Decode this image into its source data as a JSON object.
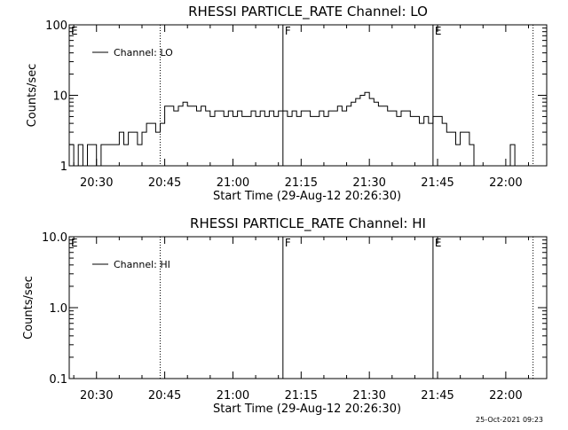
{
  "footer": {
    "timestamp": "25-Oct-2021 09:23"
  },
  "chart_data": [
    {
      "type": "line",
      "title": "RHESSI PARTICLE_RATE Channel: LO",
      "xlabel": "Start Time (29-Aug-12 20:26:30)",
      "ylabel": "Counts/sec",
      "yscale": "log",
      "ylim": [
        1,
        100
      ],
      "xlim": [
        "20:24",
        "22:09"
      ],
      "x_tick_labels": [
        "20:30",
        "20:45",
        "21:00",
        "21:15",
        "21:30",
        "21:45",
        "22:00"
      ],
      "y_tick_labels": [
        "1",
        "10",
        "100"
      ],
      "legend": {
        "position": "top-left",
        "label": "Channel: LO"
      },
      "markers": [
        {
          "label": "E",
          "time": "20:24",
          "style": "none"
        },
        {
          "label": "",
          "time": "20:44",
          "style": "dotted"
        },
        {
          "label": "F",
          "time": "21:11",
          "style": "solid"
        },
        {
          "label": "E",
          "time": "21:44",
          "style": "solid"
        },
        {
          "label": "",
          "time": "22:06",
          "style": "dotted"
        }
      ],
      "series": [
        {
          "name": "Channel: LO",
          "x": [
            "20:24",
            "20:25",
            "20:26",
            "20:27",
            "20:28",
            "20:29",
            "20:30",
            "20:31",
            "20:32",
            "20:33",
            "20:34",
            "20:35",
            "20:36",
            "20:37",
            "20:38",
            "20:39",
            "20:40",
            "20:41",
            "20:42",
            "20:43",
            "20:44",
            "20:45",
            "20:46",
            "20:47",
            "20:48",
            "20:49",
            "20:50",
            "20:51",
            "20:52",
            "20:53",
            "20:54",
            "20:55",
            "20:56",
            "20:57",
            "20:58",
            "20:59",
            "21:00",
            "21:01",
            "21:02",
            "21:03",
            "21:04",
            "21:05",
            "21:06",
            "21:07",
            "21:08",
            "21:09",
            "21:10",
            "21:11",
            "21:12",
            "21:13",
            "21:14",
            "21:15",
            "21:16",
            "21:17",
            "21:18",
            "21:19",
            "21:20",
            "21:21",
            "21:22",
            "21:23",
            "21:24",
            "21:25",
            "21:26",
            "21:27",
            "21:28",
            "21:29",
            "21:30",
            "21:31",
            "21:32",
            "21:33",
            "21:34",
            "21:35",
            "21:36",
            "21:37",
            "21:38",
            "21:39",
            "21:40",
            "21:41",
            "21:42",
            "21:43",
            "21:44",
            "21:45",
            "21:46",
            "21:47",
            "21:48",
            "21:49",
            "21:50",
            "21:51",
            "21:52",
            "21:53",
            "21:54",
            "21:55",
            "21:56",
            "21:57",
            "21:58",
            "21:59",
            "22:00",
            "22:01",
            "22:02"
          ],
          "y": [
            2,
            1,
            2,
            1,
            2,
            2,
            1,
            2,
            2,
            2,
            2,
            3,
            2,
            3,
            3,
            2,
            3,
            4,
            4,
            3,
            4,
            7,
            7,
            6,
            7,
            8,
            7,
            7,
            6,
            7,
            6,
            5,
            6,
            6,
            5,
            6,
            5,
            6,
            5,
            5,
            6,
            5,
            6,
            5,
            6,
            5,
            6,
            6,
            5,
            6,
            5,
            6,
            6,
            5,
            5,
            6,
            5,
            6,
            6,
            7,
            6,
            7,
            8,
            9,
            10,
            11,
            9,
            8,
            7,
            7,
            6,
            6,
            5,
            6,
            6,
            5,
            5,
            4,
            5,
            4,
            5,
            5,
            4,
            3,
            3,
            2,
            3,
            3,
            2,
            1,
            1,
            1,
            1,
            1,
            1,
            1,
            1,
            2,
            1
          ]
        }
      ]
    },
    {
      "type": "line",
      "title": "RHESSI PARTICLE_RATE Channel: HI",
      "xlabel": "Start Time (29-Aug-12 20:26:30)",
      "ylabel": "Counts/sec",
      "yscale": "log",
      "ylim": [
        0.1,
        10
      ],
      "xlim": [
        "20:24",
        "22:09"
      ],
      "x_tick_labels": [
        "20:30",
        "20:45",
        "21:00",
        "21:15",
        "21:30",
        "21:45",
        "22:00"
      ],
      "y_tick_labels": [
        "0.1",
        "1.0",
        "10.0"
      ],
      "legend": {
        "position": "top-left",
        "label": "Channel: HI"
      },
      "markers": [
        {
          "label": "E",
          "time": "20:24",
          "style": "none"
        },
        {
          "label": "",
          "time": "20:44",
          "style": "dotted"
        },
        {
          "label": "F",
          "time": "21:11",
          "style": "solid"
        },
        {
          "label": "E",
          "time": "21:44",
          "style": "solid"
        },
        {
          "label": "",
          "time": "22:06",
          "style": "dotted"
        }
      ],
      "series": [
        {
          "name": "Channel: HI",
          "x": [],
          "y": []
        }
      ]
    }
  ]
}
